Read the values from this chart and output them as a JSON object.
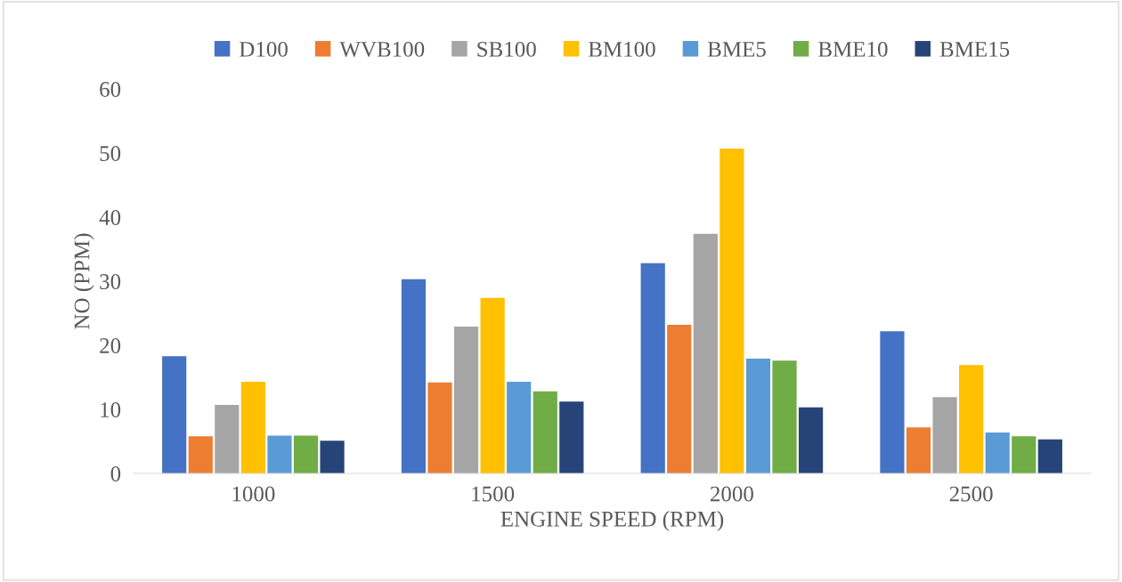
{
  "chart_data": {
    "type": "bar",
    "xlabel": "ENGINE SPEED (RPM)",
    "ylabel": "NO (PPM)",
    "categories": [
      "1000",
      "1500",
      "2000",
      "2500"
    ],
    "series": [
      {
        "name": "D100",
        "color": "#4472c4",
        "values": [
          18.3,
          30.3,
          32.8,
          22.2
        ]
      },
      {
        "name": "WVB100",
        "color": "#ed7d31",
        "values": [
          5.8,
          14.2,
          23.2,
          7.2
        ]
      },
      {
        "name": "SB100",
        "color": "#a5a5a5",
        "values": [
          10.7,
          22.9,
          37.4,
          11.9
        ]
      },
      {
        "name": "BM100",
        "color": "#ffc000",
        "values": [
          14.3,
          27.4,
          50.7,
          16.9
        ]
      },
      {
        "name": "BME5",
        "color": "#5b9bd5",
        "values": [
          5.9,
          14.3,
          17.9,
          6.4
        ]
      },
      {
        "name": "BME10",
        "color": "#70ad47",
        "values": [
          5.9,
          12.8,
          17.6,
          5.8
        ]
      },
      {
        "name": "BME15",
        "color": "#264478",
        "values": [
          5.1,
          11.2,
          10.3,
          5.3
        ]
      }
    ],
    "ylim": [
      0,
      60
    ],
    "yticks": [
      0,
      10,
      20,
      30,
      40,
      50,
      60
    ],
    "grid": false,
    "legend": "top"
  }
}
